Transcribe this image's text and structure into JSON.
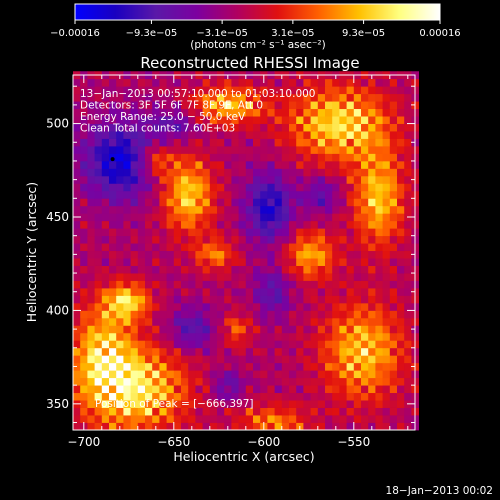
{
  "chart_data": {
    "type": "heatmap",
    "title": "Reconstructed RHESSI Image",
    "xlabel": "Heliocentric X (arcsec)",
    "ylabel": "Heliocentric Y (arcsec)",
    "xlim": [
      -706,
      -516
    ],
    "ylim": [
      336,
      526
    ],
    "x_ticks": [
      -700,
      -650,
      -600,
      -550
    ],
    "x_tick_labels": [
      "−700",
      "−650",
      "−600",
      "−550"
    ],
    "y_ticks": [
      350,
      400,
      450,
      500
    ],
    "y_tick_labels": [
      "350",
      "400",
      "450",
      "500"
    ],
    "colorbar": {
      "range": [
        -0.00016,
        0.00016
      ],
      "ticks": [
        -0.00016,
        -9.3e-05,
        -3.1e-05,
        3.1e-05,
        9.3e-05,
        0.00016
      ],
      "tick_labels": [
        "−0.00016",
        "−9.3e−05",
        "−3.1e−05",
        "3.1e−05",
        "9.3e−05",
        "0.00016"
      ],
      "unit_label": "(photons cm⁻² s⁻¹ asec⁻²)",
      "colormap_stops": [
        "#0000ff",
        "#1a00c0",
        "#5a18a8",
        "#7c00a0",
        "#b00060",
        "#e01010",
        "#ff6000",
        "#ffc000",
        "#ffff80",
        "#ffffff"
      ]
    },
    "info_lines": [
      "13−Jan−2013 00:57:10.000 to 01:03:10.000",
      "Detectors: 3F 5F 6F 7F 8F 9F, Att 0",
      "Energy Range: 25.0 − 50.0 keV",
      "Clean     Total counts: 7.60E+03"
    ],
    "peak_label": "Position of Peak = [−666,397]",
    "peak": [
      -666,
      397
    ],
    "timestamp": "18−Jan−2013 00:02",
    "grid": false,
    "emission_regions": [
      {
        "x": -671,
        "y": 358,
        "sx": 20,
        "sy": 16,
        "amp": 1.0
      },
      {
        "x": -690,
        "y": 378,
        "sx": 12,
        "sy": 18,
        "amp": 0.8
      },
      {
        "x": -676,
        "y": 405,
        "sx": 9,
        "sy": 7,
        "amp": 0.9
      },
      {
        "x": -642,
        "y": 462,
        "sx": 10,
        "sy": 14,
        "amp": 0.9
      },
      {
        "x": -620,
        "y": 510,
        "sx": 14,
        "sy": 7,
        "amp": 0.85
      },
      {
        "x": -558,
        "y": 500,
        "sx": 20,
        "sy": 14,
        "amp": 0.95
      },
      {
        "x": -536,
        "y": 460,
        "sx": 10,
        "sy": 18,
        "amp": 0.85
      },
      {
        "x": -574,
        "y": 430,
        "sx": 10,
        "sy": 9,
        "amp": 0.75
      },
      {
        "x": -545,
        "y": 378,
        "sx": 16,
        "sy": 18,
        "amp": 0.85
      },
      {
        "x": -595,
        "y": 340,
        "sx": 14,
        "sy": 7,
        "amp": 0.6
      },
      {
        "x": -615,
        "y": 390,
        "sx": 6,
        "sy": 6,
        "amp": 0.5
      },
      {
        "x": -627,
        "y": 430,
        "sx": 8,
        "sy": 6,
        "amp": 0.6
      },
      {
        "x": -660,
        "y": 480,
        "sx": 7,
        "sy": 6,
        "amp": 0.6
      }
    ],
    "negative_regions": [
      {
        "x": -680,
        "y": 480,
        "sx": 14,
        "sy": 14,
        "amp": 0.9
      },
      {
        "x": -597,
        "y": 455,
        "sx": 9,
        "sy": 13,
        "amp": 0.8
      },
      {
        "x": -640,
        "y": 390,
        "sx": 9,
        "sy": 8,
        "amp": 0.55
      },
      {
        "x": -620,
        "y": 360,
        "sx": 6,
        "sy": 6,
        "amp": 0.45
      },
      {
        "x": -595,
        "y": 410,
        "sx": 7,
        "sy": 9,
        "amp": 0.5
      },
      {
        "x": -650,
        "y": 500,
        "sx": 10,
        "sy": 6,
        "amp": 0.45
      },
      {
        "x": -568,
        "y": 462,
        "sx": 7,
        "sy": 7,
        "amp": 0.45
      }
    ]
  }
}
